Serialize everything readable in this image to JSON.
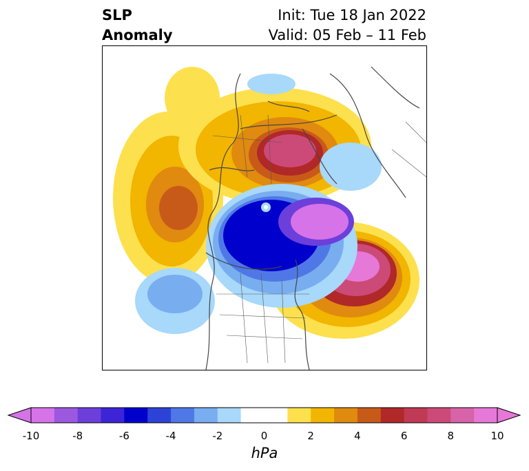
{
  "header": {
    "title_line1": "SLP",
    "title_line2": "Anomaly",
    "init": "Init: Tue 18 Jan 2022",
    "valid": "Valid: 05 Feb – 11 Feb"
  },
  "colorbar": {
    "units": "hPa",
    "tick_labels": [
      "-10",
      "-8",
      "-6",
      "-4",
      "-2",
      "0",
      "2",
      "4",
      "6",
      "8",
      "10"
    ],
    "range": [
      -10,
      10
    ],
    "extend": "both",
    "colors": [
      "#d673e8",
      "#9d58e0",
      "#6c3fdb",
      "#3d24d6",
      "#0000cc",
      "#2d43d8",
      "#4f78e6",
      "#78adf0",
      "#a8d8fa",
      "#ffffff",
      "#ffffff",
      "#fde04d",
      "#f2b500",
      "#e08a0f",
      "#c85a19",
      "#b02828",
      "#c03a55",
      "#cc4a78",
      "#d763a8",
      "#e678d8"
    ]
  },
  "map": {
    "projection": "polar-stereographic",
    "region": "Northern Hemisphere",
    "variable": "SLP anomaly"
  }
}
